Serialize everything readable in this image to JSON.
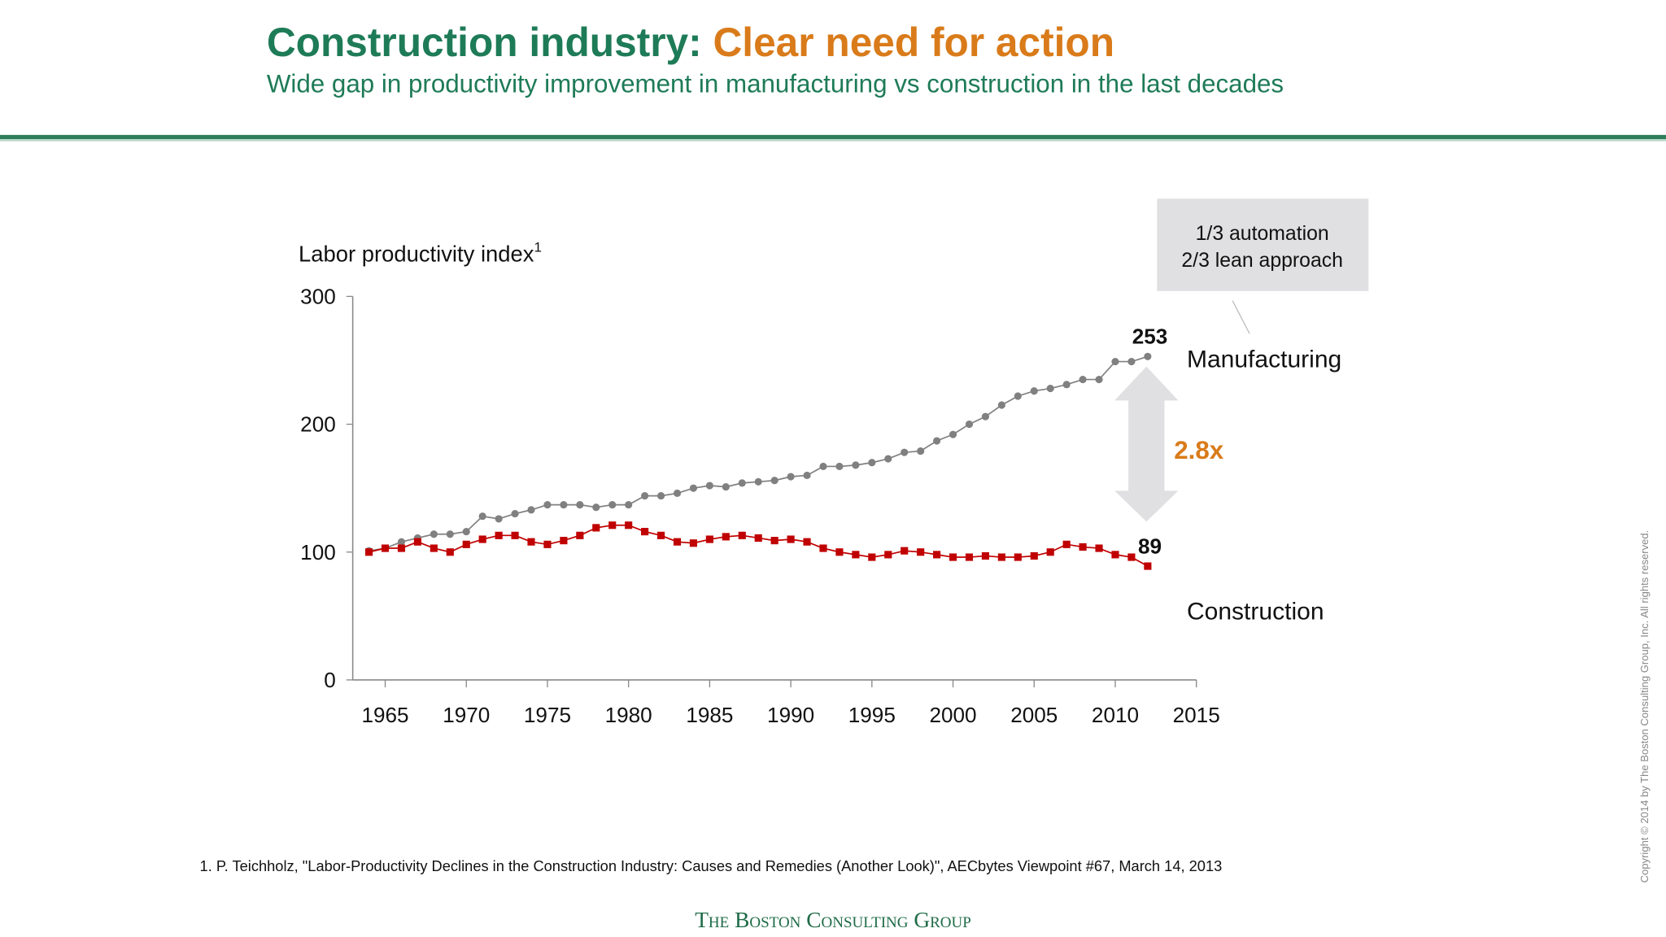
{
  "header": {
    "title_part1": "Construction industry:",
    "title_part2": "Clear need for action",
    "subtitle": "Wide gap in productivity improvement in manufacturing vs construction in the last decades"
  },
  "chart_data": {
    "type": "line",
    "ylabel": "Labor productivity index",
    "ylabel_note": "1",
    "x": [
      1964,
      1965,
      1966,
      1967,
      1968,
      1969,
      1970,
      1971,
      1972,
      1973,
      1974,
      1975,
      1976,
      1977,
      1978,
      1979,
      1980,
      1981,
      1982,
      1983,
      1984,
      1985,
      1986,
      1987,
      1988,
      1989,
      1990,
      1991,
      1992,
      1993,
      1994,
      1995,
      1996,
      1997,
      1998,
      1999,
      2000,
      2001,
      2002,
      2003,
      2004,
      2005,
      2006,
      2007,
      2008,
      2009,
      2010,
      2011,
      2012
    ],
    "series": [
      {
        "name": "Manufacturing",
        "color": "#808080",
        "marker": "circle",
        "values": [
          101,
          103,
          108,
          111,
          114,
          114,
          116,
          128,
          126,
          130,
          133,
          137,
          137,
          137,
          135,
          137,
          137,
          144,
          144,
          146,
          150,
          152,
          151,
          154,
          155,
          156,
          159,
          160,
          167,
          167,
          168,
          170,
          173,
          178,
          179,
          187,
          192,
          200,
          206,
          215,
          222,
          226,
          228,
          231,
          235,
          235,
          249,
          249,
          253
        ]
      },
      {
        "name": "Construction",
        "color": "#c00000",
        "marker": "square",
        "values": [
          100,
          103,
          103,
          108,
          103,
          100,
          106,
          110,
          113,
          113,
          108,
          106,
          109,
          113,
          119,
          121,
          121,
          116,
          113,
          108,
          107,
          110,
          112,
          113,
          111,
          109,
          110,
          108,
          103,
          100,
          98,
          96,
          98,
          101,
          100,
          98,
          96,
          96,
          97,
          96,
          96,
          97,
          100,
          106,
          104,
          103,
          98,
          96,
          89
        ]
      }
    ],
    "xlim": [
      1963,
      2015
    ],
    "xticks": [
      1965,
      1970,
      1975,
      1980,
      1985,
      1990,
      1995,
      2000,
      2005,
      2010,
      2015
    ],
    "ylim": [
      0,
      300
    ],
    "yticks": [
      0,
      100,
      200,
      300
    ],
    "annotations": {
      "box_line1": "1/3 automation",
      "box_line2": "2/3 lean approach",
      "gap": "2.8x"
    }
  },
  "footnote": "1. P. Teichholz, \"Labor-Productivity Declines in the Construction Industry: Causes and Remedies (Another Look)\", AECbytes Viewpoint #67, March 14, 2013",
  "footer": "The Boston Consulting Group",
  "copyright": "Copyright © 2014 by The Boston Consulting Group, Inc. All rights reserved."
}
